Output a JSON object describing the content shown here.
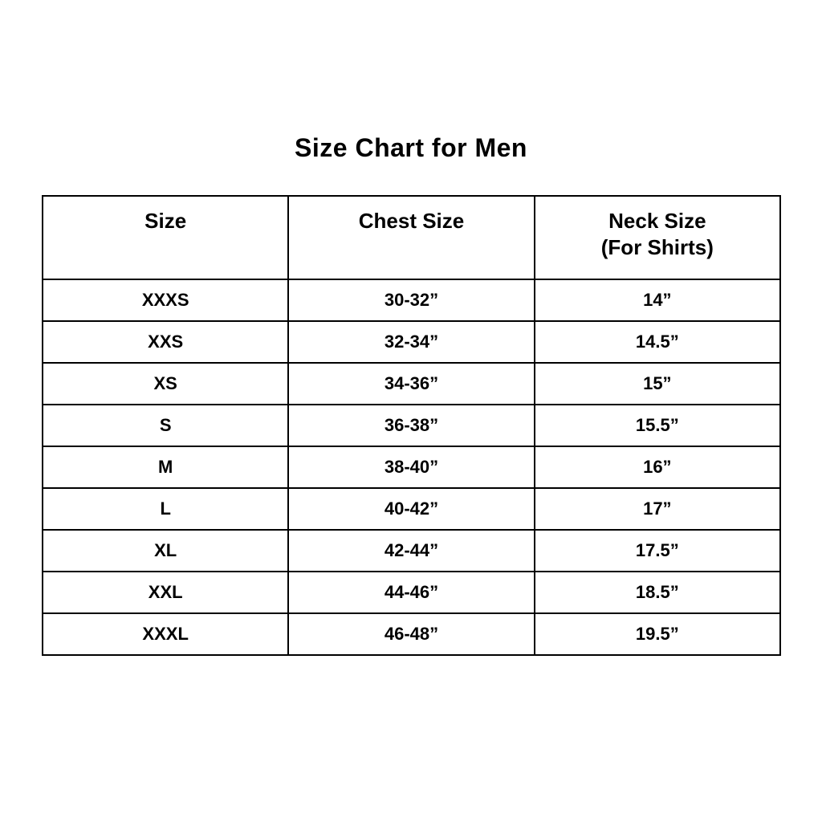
{
  "title": "Size Chart for Men",
  "colors": {
    "background": "#ffffff",
    "text": "#000000",
    "border": "#000000"
  },
  "headers": {
    "col1": "Size",
    "col2": "Chest Size",
    "col3_line1": "Neck Size",
    "col3_line2": "(For Shirts)"
  },
  "chart_data": {
    "type": "table",
    "title": "Size Chart for Men",
    "columns": [
      "Size",
      "Chest Size",
      "Neck Size (For Shirts)"
    ],
    "rows": [
      [
        "XXXS",
        "30-32”",
        "14”"
      ],
      [
        "XXS",
        "32-34”",
        "14.5”"
      ],
      [
        "XS",
        "34-36”",
        "15”"
      ],
      [
        "S",
        "36-38”",
        "15.5”"
      ],
      [
        "M",
        "38-40”",
        "16”"
      ],
      [
        "L",
        "40-42”",
        "17”"
      ],
      [
        "XL",
        "42-44”",
        "17.5”"
      ],
      [
        "XXL",
        "44-46”",
        "18.5”"
      ],
      [
        "XXXL",
        "46-48”",
        "19.5”"
      ]
    ]
  }
}
